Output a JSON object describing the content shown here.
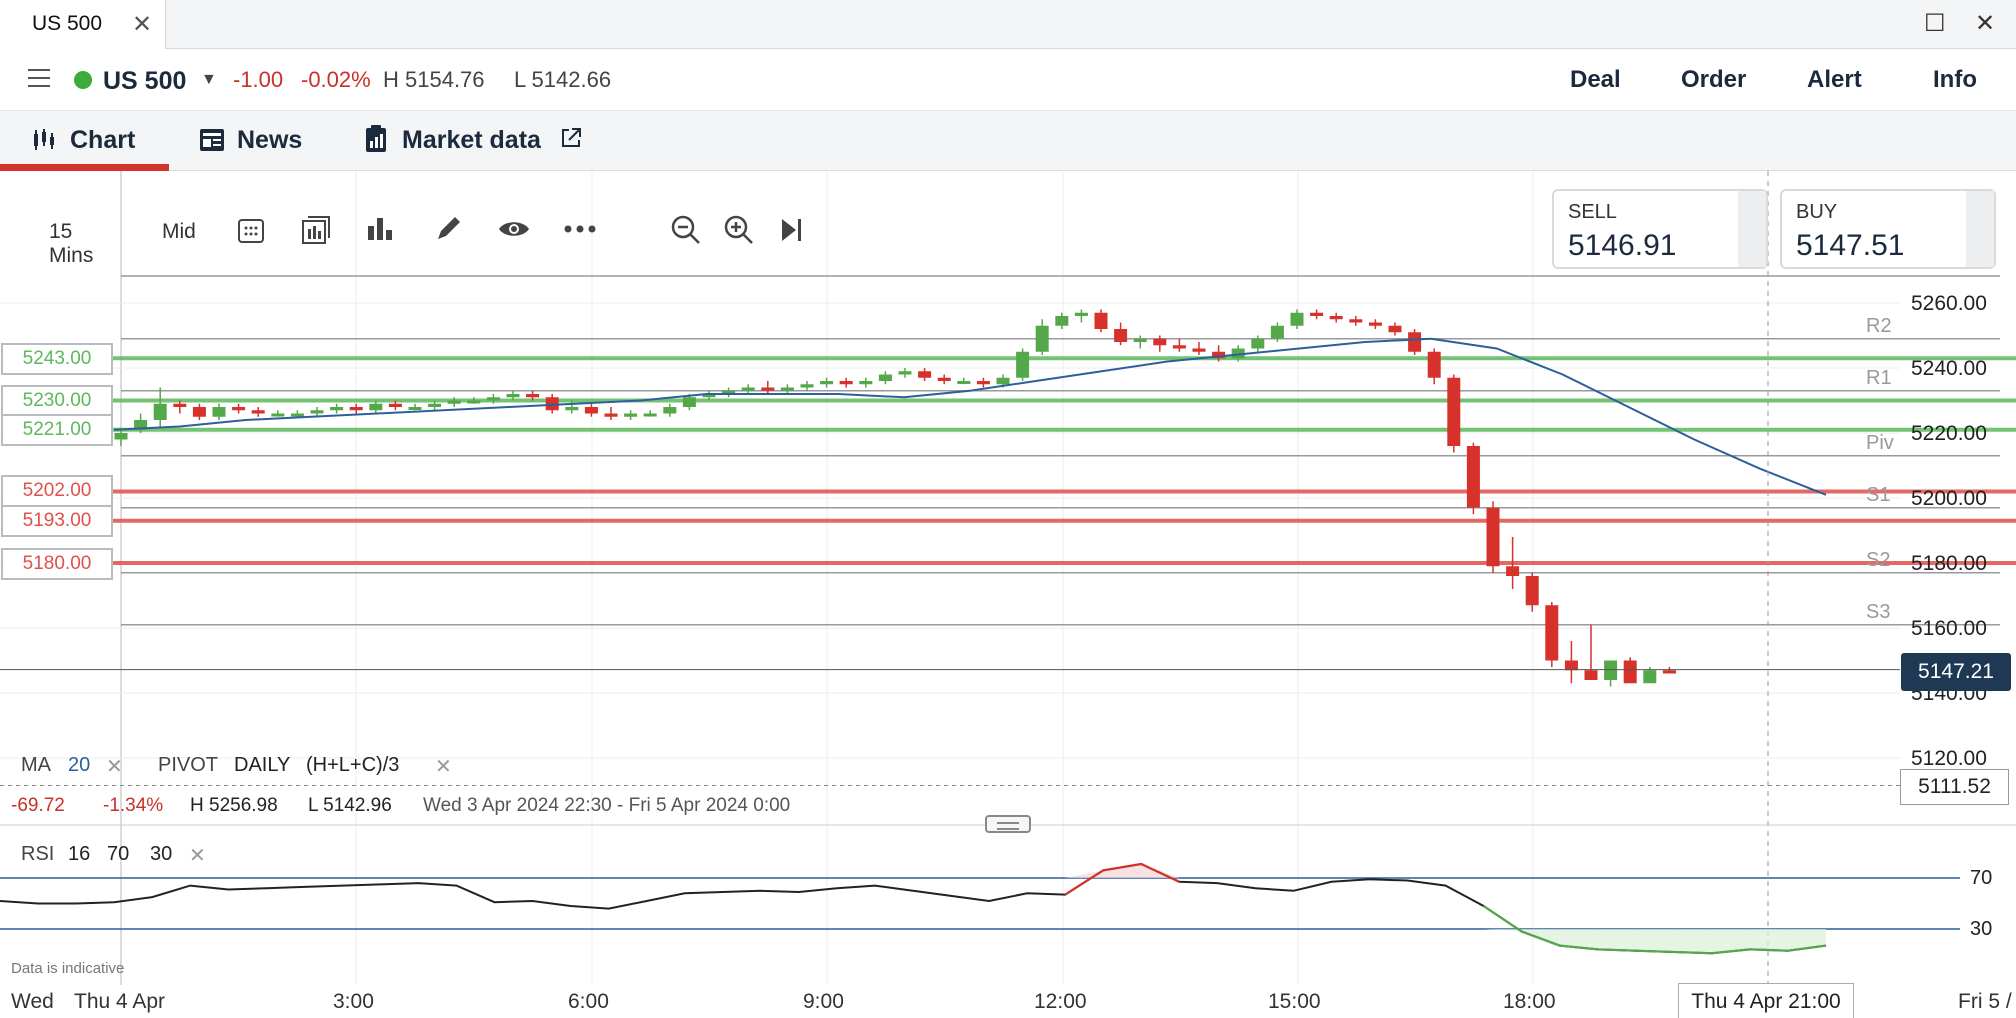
{
  "window": {
    "tab_title": "US 500",
    "close_glyph": "✕",
    "maximize_glyph": "☐",
    "win_close_glyph": "✕"
  },
  "instrument": {
    "name": "US 500",
    "change": "-1.00",
    "change_pct": "-0.02%",
    "high": "H 5154.76",
    "low": "L 5142.66"
  },
  "actions": [
    "Deal",
    "Order",
    "Alert",
    "Info"
  ],
  "nav": {
    "chart": "Chart",
    "news": "News",
    "market_data": "Market data"
  },
  "toolbar": {
    "interval": "15 Mins",
    "price_type": "Mid"
  },
  "sell": {
    "label": "SELL",
    "value": "5146.91"
  },
  "buy": {
    "label": "BUY",
    "value": "5147.51"
  },
  "levels": [
    {
      "value": "5243.00",
      "kind": "buy"
    },
    {
      "value": "5230.00",
      "kind": "buy"
    },
    {
      "value": "5221.00",
      "kind": "buy"
    },
    {
      "value": "5202.00",
      "kind": "sell"
    },
    {
      "value": "5193.00",
      "kind": "sell"
    },
    {
      "value": "5180.00",
      "kind": "sell"
    }
  ],
  "pivot_labels": [
    {
      "name": "R2",
      "price": 5249
    },
    {
      "name": "R1",
      "price": 5233
    },
    {
      "name": "Piv",
      "price": 5213
    },
    {
      "name": "S1",
      "price": 5197
    },
    {
      "name": "S2",
      "price": 5177
    },
    {
      "name": "S3",
      "price": 5161
    }
  ],
  "current_price": "5147.21",
  "reference_price": "5111.52",
  "legend": {
    "ma": "MA",
    "ma_period": "20",
    "pivot": "PIVOT",
    "pivot_period": "DAILY",
    "pivot_formula": "(H+L+C)/3"
  },
  "stats": {
    "change": "-69.72",
    "change_pct": "-1.34%",
    "high": "H 5256.98",
    "low": "L 5142.96",
    "range": "Wed 3 Apr 2024 22:30 - Fri 5 Apr 2024 0:00"
  },
  "rsi": {
    "label": "RSI",
    "period": "16",
    "upper": "70",
    "lower": "30"
  },
  "disclaimer": "Data is indicative",
  "crosshair_time": "Thu 4 Apr 21:00",
  "colors": {
    "up": "#54a84a",
    "down": "#d6312a",
    "buy_level": "#5cb85c",
    "sell_level": "#e0504a",
    "ma": "#2e5f9b",
    "accent": "#d4322c"
  },
  "chart_data": {
    "type": "candlestick",
    "y_ticks": [
      "5260.00",
      "5240.00",
      "5220.00",
      "5200.00",
      "5180.00",
      "5160.00",
      "5140.00",
      "5120.00"
    ],
    "ylim": [
      5112,
      5272
    ],
    "x_ticks": [
      "Wed",
      "Thu 4 Apr",
      "3:00",
      "6:00",
      "9:00",
      "12:00",
      "15:00",
      "18:00",
      "Fri 5 /"
    ],
    "ohlc": [
      [
        5218,
        5221,
        5216,
        5220
      ],
      [
        5221,
        5226,
        5220,
        5224
      ],
      [
        5224,
        5234,
        5222,
        5229
      ],
      [
        5229,
        5230,
        5226,
        5228
      ],
      [
        5228,
        5229,
        5224,
        5225
      ],
      [
        5225,
        5229,
        5224,
        5228
      ],
      [
        5228,
        5229,
        5226,
        5227
      ],
      [
        5227,
        5228,
        5225,
        5226
      ],
      [
        5226,
        5227,
        5225,
        5226
      ],
      [
        5226,
        5227,
        5225,
        5226
      ],
      [
        5226,
        5228,
        5225,
        5227
      ],
      [
        5227,
        5229,
        5226,
        5228
      ],
      [
        5228,
        5229,
        5226,
        5227
      ],
      [
        5227,
        5230,
        5226,
        5229
      ],
      [
        5229,
        5230,
        5227,
        5228
      ],
      [
        5228,
        5229,
        5227,
        5228
      ],
      [
        5228,
        5230,
        5227,
        5229
      ],
      [
        5229,
        5231,
        5228,
        5230
      ],
      [
        5230,
        5231,
        5229,
        5230
      ],
      [
        5230,
        5232,
        5229,
        5231
      ],
      [
        5231,
        5233,
        5230,
        5232
      ],
      [
        5232,
        5233,
        5230,
        5231
      ],
      [
        5231,
        5232,
        5226,
        5227
      ],
      [
        5227,
        5230,
        5226,
        5228
      ],
      [
        5228,
        5229,
        5225,
        5226
      ],
      [
        5226,
        5228,
        5224,
        5225
      ],
      [
        5225,
        5227,
        5224,
        5226
      ],
      [
        5226,
        5227,
        5225,
        5226
      ],
      [
        5226,
        5229,
        5225,
        5228
      ],
      [
        5228,
        5232,
        5227,
        5231
      ],
      [
        5231,
        5233,
        5230,
        5232
      ],
      [
        5232,
        5234,
        5231,
        5233
      ],
      [
        5233,
        5235,
        5232,
        5234
      ],
      [
        5234,
        5236,
        5232,
        5233
      ],
      [
        5233,
        5235,
        5232,
        5234
      ],
      [
        5234,
        5236,
        5233,
        5235
      ],
      [
        5235,
        5237,
        5234,
        5236
      ],
      [
        5236,
        5237,
        5234,
        5235
      ],
      [
        5235,
        5237,
        5234,
        5236
      ],
      [
        5236,
        5239,
        5235,
        5238
      ],
      [
        5238,
        5240,
        5237,
        5239
      ],
      [
        5239,
        5240,
        5236,
        5237
      ],
      [
        5237,
        5238,
        5235,
        5236
      ],
      [
        5236,
        5237,
        5235,
        5236
      ],
      [
        5236,
        5237,
        5234,
        5235
      ],
      [
        5235,
        5238,
        5234,
        5237
      ],
      [
        5237,
        5246,
        5236,
        5245
      ],
      [
        5245,
        5255,
        5244,
        5253
      ],
      [
        5253,
        5257,
        5252,
        5256
      ],
      [
        5256,
        5258,
        5254,
        5257
      ],
      [
        5257,
        5258,
        5251,
        5252
      ],
      [
        5252,
        5254,
        5247,
        5248
      ],
      [
        5248,
        5250,
        5246,
        5249
      ],
      [
        5249,
        5250,
        5245,
        5247
      ],
      [
        5247,
        5249,
        5245,
        5246
      ],
      [
        5246,
        5248,
        5244,
        5245
      ],
      [
        5245,
        5247,
        5242,
        5243
      ],
      [
        5243,
        5247,
        5242,
        5246
      ],
      [
        5246,
        5250,
        5245,
        5249
      ],
      [
        5249,
        5254,
        5248,
        5253
      ],
      [
        5253,
        5258,
        5252,
        5257
      ],
      [
        5257,
        5258,
        5255,
        5256
      ],
      [
        5256,
        5257,
        5254,
        5255
      ],
      [
        5255,
        5256,
        5253,
        5254
      ],
      [
        5254,
        5255,
        5252,
        5253
      ],
      [
        5253,
        5254,
        5250,
        5251
      ],
      [
        5251,
        5252,
        5244,
        5245
      ],
      [
        5245,
        5246,
        5235,
        5237
      ],
      [
        5237,
        5238,
        5214,
        5216
      ],
      [
        5216,
        5217,
        5195,
        5197
      ],
      [
        5197,
        5199,
        5177,
        5179
      ],
      [
        5179,
        5188,
        5172,
        5176
      ],
      [
        5176,
        5177,
        5165,
        5167
      ],
      [
        5167,
        5168,
        5148,
        5150
      ],
      [
        5150,
        5156,
        5143,
        5147
      ],
      [
        5147,
        5161,
        5144,
        5144
      ],
      [
        5144,
        5150,
        5142,
        5150
      ],
      [
        5150,
        5151,
        5143,
        5143
      ],
      [
        5143,
        5148,
        5143,
        5147
      ],
      [
        5147,
        5148,
        5146,
        5146
      ]
    ],
    "ma20": [
      5221,
      5222,
      5224,
      5225,
      5226,
      5227,
      5228,
      5229,
      5230,
      5232,
      5232,
      5232,
      5231,
      5233,
      5236,
      5239,
      5242,
      5244,
      5246,
      5248,
      5249,
      5246,
      5238,
      5228,
      5218,
      5209,
      5201
    ],
    "rsi": [
      52,
      50,
      50,
      51,
      55,
      64,
      61,
      62,
      63,
      64,
      65,
      66,
      64,
      51,
      52,
      48,
      46,
      52,
      58,
      59,
      60,
      59,
      62,
      64,
      60,
      56,
      52,
      58,
      57,
      76,
      81,
      67,
      66,
      62,
      60,
      67,
      69,
      68,
      64,
      48,
      28,
      17,
      14,
      13,
      12,
      11,
      14,
      13,
      17
    ]
  }
}
